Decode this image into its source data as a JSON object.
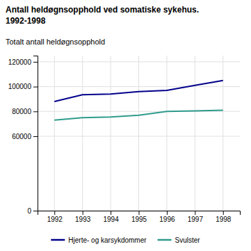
{
  "chart_data": {
    "type": "line",
    "title": "Antall heldøgnsopphold ved somatiske sykehus.",
    "subtitle": "1992-1998",
    "y_label": "Totalt antall heldøgnsopphold",
    "x": [
      1992,
      1993,
      1994,
      1995,
      1996,
      1997,
      1998
    ],
    "series": [
      {
        "name": "Hjerte- og karsykdommer",
        "color": "#00008B",
        "values": [
          88000,
          93500,
          94000,
          96000,
          97000,
          101000,
          105000
        ]
      },
      {
        "name": "Svulster",
        "color": "#2E9B8B",
        "values": [
          73000,
          75000,
          75500,
          77000,
          80000,
          80500,
          81000
        ]
      }
    ],
    "xlim": [
      1991.4,
      1998.6
    ],
    "xticks": [
      1992,
      1993,
      1994,
      1995,
      1996,
      1997,
      1998
    ],
    "ylim": [
      0,
      125000
    ],
    "yticks": [
      0,
      60000,
      80000,
      100000,
      120000
    ],
    "grid": true,
    "legend": "bottom"
  }
}
